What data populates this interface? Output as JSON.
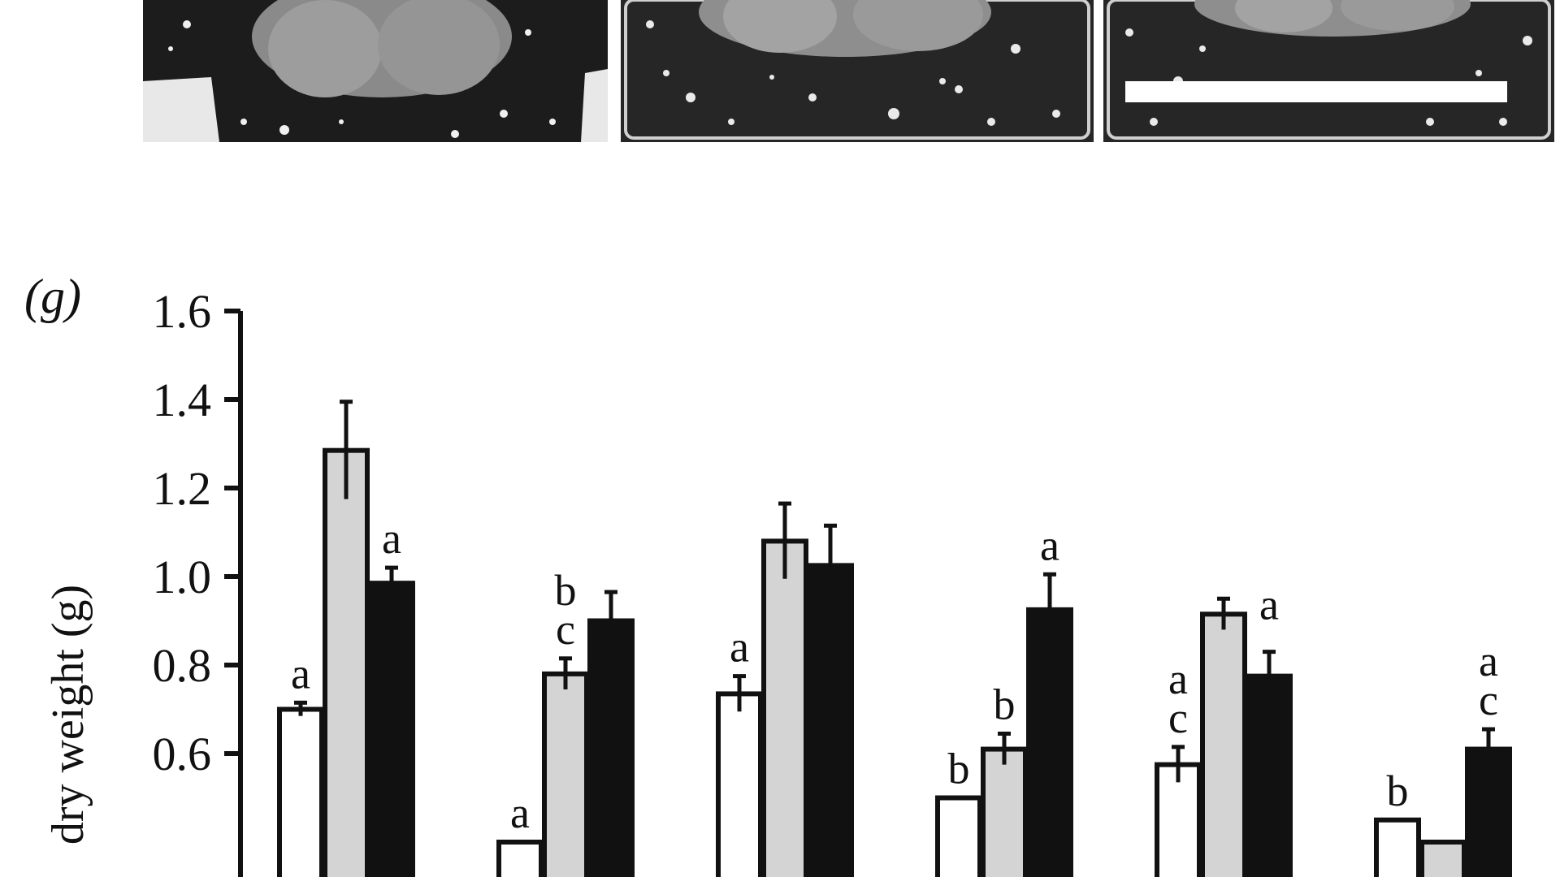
{
  "panel_label": "(g)",
  "colors": {
    "white_series": "#ffffff",
    "grey_series": "#d4d4d4",
    "black_series": "#111111",
    "axis": "#111111",
    "photo_background": "#1a1a1a",
    "scale_bar": "#ffffff"
  },
  "photos": [
    {
      "name": "plant-photo-1"
    },
    {
      "name": "plant-photo-2"
    },
    {
      "name": "plant-photo-3"
    }
  ],
  "chart_data": {
    "type": "bar",
    "title": "",
    "xlabel": "",
    "ylabel": "dry weight (g)",
    "ylim": [
      0.4,
      1.6
    ],
    "yticks": [
      "0.6",
      "0.8",
      "1.0",
      "1.2",
      "1.4",
      "1.6"
    ],
    "ytick_values": [
      0.6,
      0.8,
      1.0,
      1.2,
      1.4,
      1.6
    ],
    "grid": false,
    "legend": "none",
    "groups": 6,
    "series": [
      {
        "color_key": "white_series",
        "values": [
          0.7,
          0.4,
          0.735,
          0.5,
          0.575,
          0.45
        ],
        "errors": [
          0.015,
          0.0,
          0.04,
          0.0,
          0.04,
          0.0
        ],
        "labels": [
          "a",
          "a",
          "a",
          "b",
          "a\nc",
          "b"
        ]
      },
      {
        "color_key": "grey_series",
        "values": [
          1.285,
          0.78,
          1.08,
          0.61,
          0.915,
          0.4
        ],
        "errors": [
          0.11,
          0.035,
          0.085,
          0.035,
          0.035,
          0.0
        ],
        "labels": [
          "",
          "b\nc",
          "",
          "b",
          "",
          ""
        ]
      },
      {
        "color_key": "black_series",
        "values": [
          0.985,
          0.9,
          1.025,
          0.925,
          0.775,
          0.61
        ],
        "errors": [
          0.035,
          0.065,
          0.09,
          0.08,
          0.055,
          0.045
        ],
        "labels": [
          "a",
          "",
          "",
          "a",
          "",
          "a\nc"
        ]
      }
    ],
    "side_labels": [
      {
        "group": 4,
        "series": 1,
        "text": "a"
      }
    ]
  }
}
